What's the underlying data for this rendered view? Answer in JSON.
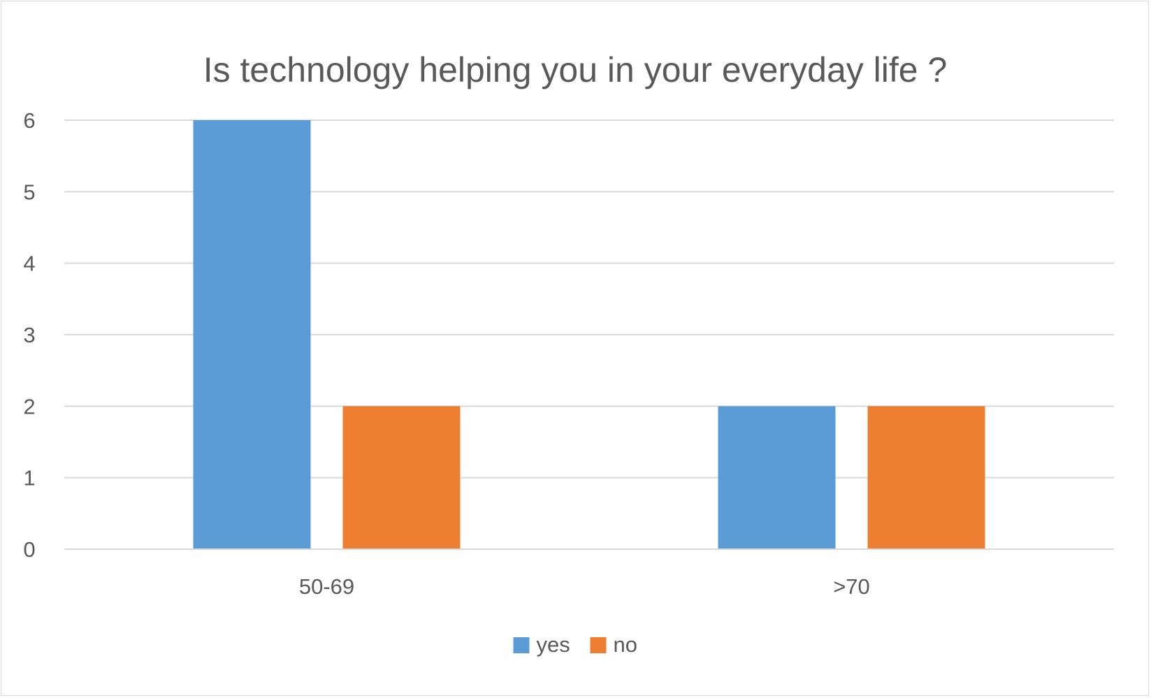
{
  "chart_data": {
    "type": "bar",
    "title": "Is technology helping you in your everyday life ?",
    "xlabel": "",
    "ylabel": "",
    "categories": [
      "50-69",
      ">70"
    ],
    "series": [
      {
        "name": "yes",
        "color": "#5b9bd5",
        "values": [
          6,
          2
        ]
      },
      {
        "name": "no",
        "color": "#ed7d31",
        "values": [
          2,
          2
        ]
      }
    ],
    "ylim": [
      0,
      6
    ],
    "yticks": [
      0,
      1,
      2,
      3,
      4,
      5,
      6
    ],
    "grid": true,
    "legend_position": "bottom"
  }
}
